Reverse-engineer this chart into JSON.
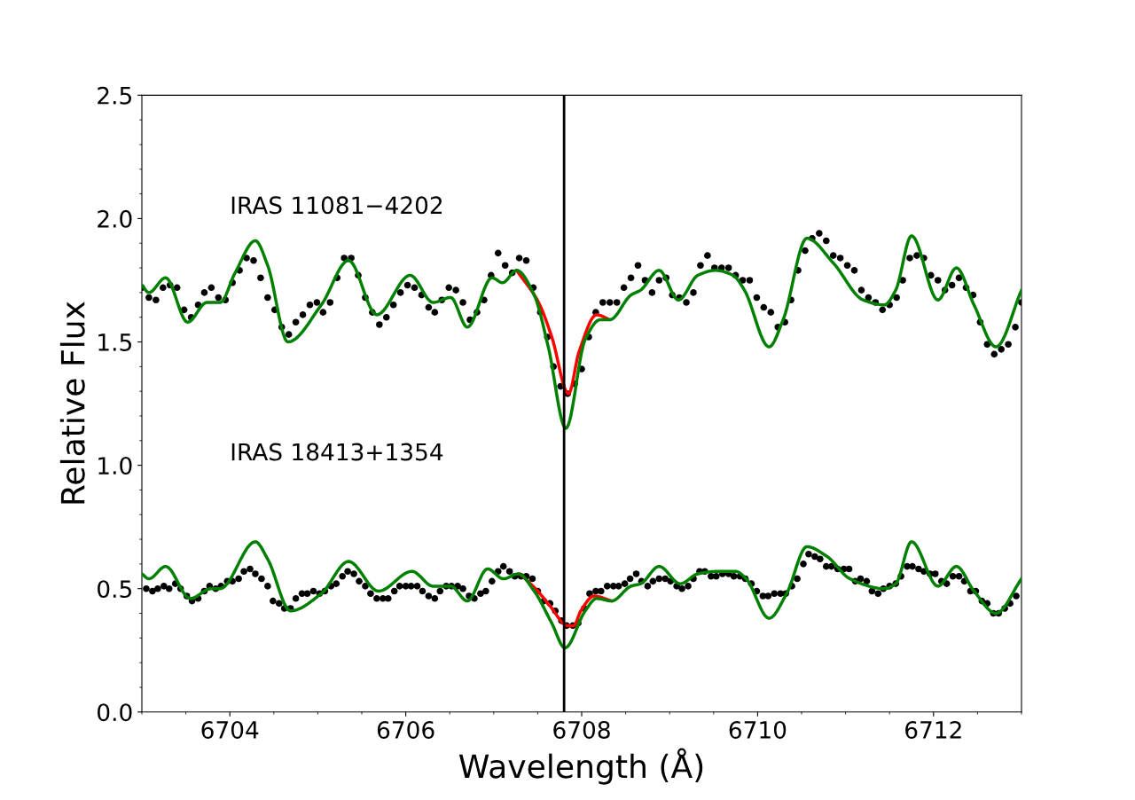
{
  "chart_data": {
    "type": "scatter",
    "xlabel": "Wavelength (Å)",
    "ylabel": "Relative Flux",
    "xlim": [
      6703,
      6713
    ],
    "ylim": [
      0,
      2.5
    ],
    "xticks": [
      6704,
      6706,
      6708,
      6710,
      6712
    ],
    "yticks": [
      {
        "value": 0,
        "label": "0.0"
      },
      0.5,
      {
        "value": 1,
        "label": "1.0"
      },
      1.5,
      {
        "value": 2,
        "label": "2.0"
      },
      2.5
    ],
    "grid": false,
    "annotations": [
      "IRAS 11081−4202",
      "IRAS 18413+1354"
    ],
    "ref_lines": [
      {
        "axis": "x",
        "value": 6707.8,
        "color": "#000000",
        "line_style": "solid"
      }
    ],
    "series": [
      {
        "marker": "circle",
        "color": "#000000",
        "x": [
          6703.0,
          6703.08,
          6703.16,
          6703.24,
          6703.32,
          6703.4,
          6703.48,
          6703.56,
          6703.64,
          6703.71,
          6703.79,
          6703.87,
          6703.95,
          6704.03,
          6704.11,
          6704.19,
          6704.27,
          6704.35,
          6704.43,
          6704.51,
          6704.59,
          6704.67,
          6704.75,
          6704.83,
          6704.91,
          6704.99,
          6705.06,
          6705.14,
          6705.22,
          6705.3,
          6705.38,
          6705.46,
          6705.54,
          6705.62,
          6705.7,
          6705.78,
          6705.86,
          6705.94,
          6706.02,
          6706.1,
          6706.18,
          6706.26,
          6706.33,
          6706.41,
          6706.49,
          6706.57,
          6706.65,
          6706.73,
          6706.81,
          6706.89,
          6706.97,
          6707.05,
          6707.13,
          6707.21,
          6707.29,
          6707.37,
          6707.45,
          6707.53,
          6707.61,
          6707.68,
          6707.76,
          6707.84,
          6707.92,
          6708.0,
          6708.08,
          6708.16,
          6708.24,
          6708.32,
          6708.4,
          6708.48,
          6708.56,
          6708.64,
          6708.72,
          6708.8,
          6708.88,
          6708.96,
          6709.03,
          6709.11,
          6709.19,
          6709.27,
          6709.35,
          6709.43,
          6709.51,
          6709.59,
          6709.67,
          6709.75,
          6709.83,
          6709.91,
          6709.99,
          6710.07,
          6710.15,
          6710.23,
          6710.31,
          6710.38,
          6710.46,
          6710.54,
          6710.62,
          6710.7,
          6710.78,
          6710.86,
          6710.94,
          6711.02,
          6711.1,
          6711.18,
          6711.26,
          6711.34,
          6711.42,
          6711.5,
          6711.58,
          6711.65,
          6711.73,
          6711.81,
          6711.89,
          6711.97,
          6712.05,
          6712.13,
          6712.21,
          6712.29,
          6712.37,
          6712.45,
          6712.53,
          6712.61,
          6712.69,
          6712.77,
          6712.85,
          6712.93,
          6713.0
        ],
        "values": [
          1.72,
          1.68,
          1.67,
          1.72,
          1.73,
          1.72,
          1.63,
          1.6,
          1.65,
          1.7,
          1.72,
          1.68,
          1.67,
          1.74,
          1.79,
          1.84,
          1.83,
          1.76,
          1.68,
          1.63,
          1.56,
          1.53,
          1.58,
          1.61,
          1.65,
          1.66,
          1.62,
          1.66,
          1.76,
          1.84,
          1.84,
          1.77,
          1.68,
          1.62,
          1.57,
          1.6,
          1.65,
          1.7,
          1.73,
          1.72,
          1.69,
          1.64,
          1.62,
          1.67,
          1.72,
          1.71,
          1.66,
          1.59,
          1.62,
          1.67,
          1.77,
          1.86,
          1.81,
          1.78,
          1.84,
          1.83,
          1.72,
          1.62,
          1.52,
          1.4,
          1.32,
          1.29,
          1.33,
          1.39,
          1.52,
          1.62,
          1.66,
          1.66,
          1.66,
          1.72,
          1.76,
          1.81,
          1.75,
          1.7,
          1.75,
          1.76,
          1.69,
          1.68,
          1.66,
          1.7,
          1.81,
          1.85,
          1.8,
          1.8,
          1.8,
          1.77,
          1.75,
          1.75,
          1.68,
          1.64,
          1.62,
          1.56,
          1.58,
          1.67,
          1.79,
          1.87,
          1.92,
          1.94,
          1.91,
          1.85,
          1.84,
          1.81,
          1.79,
          1.71,
          1.68,
          1.66,
          1.63,
          1.65,
          1.68,
          1.75,
          1.84,
          1.85,
          1.84,
          1.77,
          1.75,
          1.71,
          1.73,
          1.76,
          1.72,
          1.69,
          1.58,
          1.49,
          1.45,
          1.47,
          1.49,
          1.56,
          1.66
        ]
      },
      {
        "marker": "circle",
        "color": "#000000",
        "x": [
          6703.05,
          6703.12,
          6703.18,
          6703.25,
          6703.31,
          6703.38,
          6703.44,
          6703.51,
          6703.57,
          6703.64,
          6703.71,
          6703.77,
          6703.84,
          6703.9,
          6703.97,
          6704.03,
          6704.1,
          6704.16,
          6704.23,
          6704.29,
          6704.36,
          6704.43,
          6704.49,
          6704.56,
          6704.62,
          6704.69,
          6704.75,
          6704.82,
          6704.88,
          6704.95,
          6705.02,
          6705.08,
          6705.15,
          6705.21,
          6705.28,
          6705.34,
          6705.41,
          6705.47,
          6705.54,
          6705.6,
          6705.67,
          6705.74,
          6705.8,
          6705.87,
          6705.93,
          6706.0,
          6706.06,
          6706.13,
          6706.19,
          6706.26,
          6706.33,
          6706.39,
          6706.46,
          6706.52,
          6706.59,
          6706.65,
          6706.72,
          6706.78,
          6706.85,
          6706.91,
          6706.98,
          6707.05,
          6707.11,
          6707.18,
          6707.24,
          6707.31,
          6707.37,
          6707.44,
          6707.5,
          6707.57,
          6707.64,
          6707.7,
          6707.77,
          6707.83,
          6707.9,
          6707.96,
          6708.03,
          6708.09,
          6708.16,
          6708.22,
          6708.29,
          6708.36,
          6708.42,
          6708.49,
          6708.55,
          6708.62,
          6708.68,
          6708.75,
          6708.81,
          6708.88,
          6708.95,
          6709.01,
          6709.08,
          6709.14,
          6709.21,
          6709.27,
          6709.34,
          6709.4,
          6709.47,
          6709.53,
          6709.6,
          6709.67,
          6709.73,
          6709.8,
          6709.86,
          6709.93,
          6709.99,
          6710.06,
          6710.12,
          6710.19,
          6710.26,
          6710.32,
          6710.39,
          6710.45,
          6710.52,
          6710.58,
          6710.65,
          6710.71,
          6710.78,
          6710.84,
          6710.91,
          6710.98,
          6711.04,
          6711.11,
          6711.17,
          6711.24,
          6711.3,
          6711.37,
          6711.43,
          6711.5,
          6711.57,
          6711.63,
          6711.7,
          6711.76,
          6711.83,
          6711.89,
          6711.96,
          6712.02,
          6712.09,
          6712.15,
          6712.22,
          6712.29,
          6712.35,
          6712.42,
          6712.48,
          6712.55,
          6712.61,
          6712.68,
          6712.74,
          6712.81,
          6712.87,
          6712.94
        ],
        "values": [
          0.5,
          0.49,
          0.5,
          0.51,
          0.5,
          0.52,
          0.5,
          0.47,
          0.45,
          0.46,
          0.49,
          0.51,
          0.5,
          0.51,
          0.53,
          0.53,
          0.54,
          0.57,
          0.58,
          0.56,
          0.54,
          0.51,
          0.45,
          0.44,
          0.42,
          0.42,
          0.46,
          0.48,
          0.48,
          0.49,
          0.48,
          0.49,
          0.51,
          0.52,
          0.55,
          0.57,
          0.56,
          0.53,
          0.51,
          0.48,
          0.46,
          0.46,
          0.46,
          0.49,
          0.51,
          0.51,
          0.51,
          0.51,
          0.49,
          0.47,
          0.46,
          0.49,
          0.51,
          0.51,
          0.51,
          0.5,
          0.47,
          0.46,
          0.48,
          0.49,
          0.53,
          0.57,
          0.59,
          0.57,
          0.55,
          0.55,
          0.55,
          0.54,
          0.49,
          0.45,
          0.44,
          0.41,
          0.37,
          0.35,
          0.35,
          0.36,
          0.42,
          0.48,
          0.49,
          0.49,
          0.51,
          0.51,
          0.51,
          0.52,
          0.54,
          0.56,
          0.53,
          0.51,
          0.53,
          0.54,
          0.54,
          0.53,
          0.51,
          0.5,
          0.51,
          0.54,
          0.57,
          0.57,
          0.55,
          0.55,
          0.56,
          0.56,
          0.55,
          0.55,
          0.54,
          0.52,
          0.49,
          0.47,
          0.47,
          0.48,
          0.48,
          0.48,
          0.51,
          0.54,
          0.6,
          0.64,
          0.63,
          0.62,
          0.59,
          0.59,
          0.58,
          0.58,
          0.58,
          0.53,
          0.54,
          0.53,
          0.49,
          0.48,
          0.5,
          0.51,
          0.52,
          0.55,
          0.59,
          0.59,
          0.58,
          0.57,
          0.56,
          0.56,
          0.53,
          0.52,
          0.55,
          0.55,
          0.53,
          0.49,
          0.49,
          0.45,
          0.44,
          0.4,
          0.4,
          0.42,
          0.44,
          0.47
        ]
      },
      {
        "type": "line",
        "line_style": "solid",
        "color": "#ff0000",
        "x": [
          6707.26,
          6707.51,
          6707.66,
          6707.85,
          6707.97,
          6708.17,
          6708.32
        ],
        "values": [
          1.79,
          1.66,
          1.52,
          1.29,
          1.46,
          1.61,
          1.59
        ]
      },
      {
        "type": "line",
        "line_style": "solid",
        "color": "#ff0000",
        "x": [
          6707.3,
          6707.5,
          6707.64,
          6707.84,
          6707.91,
          6707.99,
          6708.14,
          6708.34
        ],
        "values": [
          0.56,
          0.49,
          0.43,
          0.35,
          0.35,
          0.41,
          0.47,
          0.45
        ]
      },
      {
        "type": "line",
        "line_style": "solid",
        "color": "#008000",
        "x": [
          6703.0,
          6703.08,
          6703.27,
          6703.52,
          6703.74,
          6703.89,
          6704.06,
          6704.29,
          6704.43,
          6704.66,
          6705.04,
          6705.35,
          6705.67,
          6706.05,
          6706.31,
          6706.51,
          6706.7,
          6706.98,
          6707.1,
          6707.26,
          6707.46,
          6707.62,
          6707.82,
          6708.04,
          6708.21,
          6708.32,
          6708.56,
          6708.67,
          6708.88,
          6709.1,
          6709.32,
          6709.52,
          6709.72,
          6709.85,
          6710.13,
          6710.29,
          6710.56,
          6710.86,
          6711.2,
          6711.44,
          6711.57,
          6711.75,
          6712.05,
          6712.26,
          6712.46,
          6712.71,
          6713.0
        ],
        "values": [
          1.73,
          1.7,
          1.76,
          1.58,
          1.66,
          1.66,
          1.78,
          1.91,
          1.81,
          1.5,
          1.65,
          1.83,
          1.61,
          1.77,
          1.66,
          1.68,
          1.56,
          1.76,
          1.74,
          1.79,
          1.69,
          1.48,
          1.15,
          1.51,
          1.59,
          1.59,
          1.69,
          1.71,
          1.79,
          1.67,
          1.77,
          1.79,
          1.77,
          1.71,
          1.48,
          1.59,
          1.92,
          1.82,
          1.67,
          1.65,
          1.71,
          1.93,
          1.67,
          1.8,
          1.65,
          1.48,
          1.71
        ]
      },
      {
        "type": "line",
        "line_style": "solid",
        "color": "#008000",
        "x": [
          6703.0,
          6703.08,
          6703.27,
          6703.55,
          6703.79,
          6703.89,
          6704.29,
          6704.43,
          6704.69,
          6705.04,
          6705.35,
          6705.69,
          6706.07,
          6706.31,
          6706.51,
          6706.7,
          6706.93,
          6707.11,
          6707.28,
          6707.46,
          6707.66,
          6707.81,
          6708.04,
          6708.17,
          6708.34,
          6708.56,
          6708.67,
          6708.88,
          6709.12,
          6709.32,
          6709.55,
          6709.75,
          6709.87,
          6710.13,
          6710.33,
          6710.56,
          6710.79,
          6711.05,
          6711.44,
          6711.57,
          6711.75,
          6712.05,
          6712.26,
          6712.46,
          6712.71,
          6713.0
        ],
        "values": [
          0.56,
          0.54,
          0.59,
          0.46,
          0.5,
          0.5,
          0.69,
          0.62,
          0.41,
          0.48,
          0.61,
          0.49,
          0.57,
          0.51,
          0.51,
          0.45,
          0.58,
          0.54,
          0.56,
          0.49,
          0.36,
          0.26,
          0.41,
          0.46,
          0.45,
          0.51,
          0.52,
          0.59,
          0.52,
          0.56,
          0.57,
          0.57,
          0.54,
          0.38,
          0.48,
          0.67,
          0.63,
          0.54,
          0.5,
          0.52,
          0.69,
          0.51,
          0.59,
          0.49,
          0.4,
          0.54
        ]
      }
    ]
  }
}
